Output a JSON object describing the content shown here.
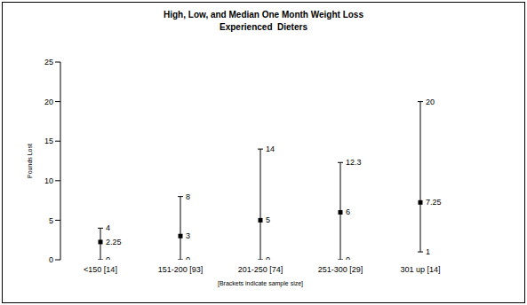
{
  "chart_data": {
    "type": "high_low",
    "title": "High, Low, and Median One Month Weight Loss",
    "subtitle": "Experienced  Dieters",
    "x_label": "[Brackets indicate sample size]",
    "y_label": "Pounds Lost",
    "categories": [
      "<150 [14]",
      "151-200 [93]",
      "201-250 [74]",
      "251-300 [29]",
      "301 up [14]"
    ],
    "high": [
      4,
      8,
      14,
      12.3,
      20
    ],
    "low": [
      0,
      0,
      0,
      0,
      1
    ],
    "median": [
      2.25,
      3,
      5,
      6,
      7.25
    ],
    "color": "#000000",
    "marker": "square",
    "ylim": [
      0,
      25
    ],
    "yticks": [
      0,
      5,
      10,
      15,
      20,
      25
    ],
    "grid": false,
    "data_labels": true
  }
}
